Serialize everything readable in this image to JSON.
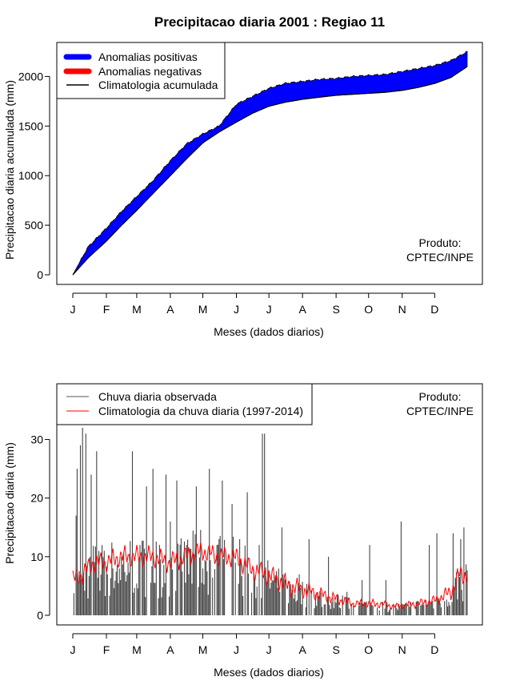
{
  "title": "Precipitacao diaria 2001 : Regiao 11",
  "credit": {
    "line1": "Produto:",
    "line2": "CPTEC/INPE"
  },
  "month_ticks": [
    "J",
    "F",
    "M",
    "A",
    "M",
    "J",
    "J",
    "A",
    "S",
    "O",
    "N",
    "D"
  ],
  "chart_data": [
    {
      "type": "area",
      "name": "cumulative",
      "xlabel": "Meses (dados diarios)",
      "ylabel": "Precipitacao diaria acumulada (mm)",
      "xlim": [
        1,
        365
      ],
      "ylim": [
        0,
        2270
      ],
      "yticks": [
        0,
        500,
        1000,
        1500,
        2000
      ],
      "legend": {
        "position": "top-left",
        "entries": [
          "Anomalias positivas",
          "Anomalias negativas",
          "Climatologia acumulada"
        ],
        "colors": [
          "#0000ff",
          "#ff0000",
          "#000000"
        ]
      },
      "x": [
        1,
        15,
        32,
        46,
        60,
        75,
        91,
        106,
        121,
        136,
        152,
        167,
        182,
        197,
        213,
        228,
        244,
        259,
        274,
        289,
        305,
        320,
        335,
        350,
        365
      ],
      "observed": [
        0,
        280,
        470,
        640,
        790,
        950,
        1150,
        1320,
        1420,
        1500,
        1720,
        1800,
        1880,
        1930,
        1950,
        1970,
        1980,
        2000,
        2010,
        2020,
        2050,
        2080,
        2110,
        2160,
        2250
      ],
      "climatology": [
        0,
        170,
        340,
        500,
        650,
        820,
        1000,
        1170,
        1330,
        1440,
        1540,
        1630,
        1700,
        1740,
        1770,
        1790,
        1810,
        1820,
        1830,
        1840,
        1860,
        1890,
        1930,
        1990,
        2100
      ]
    },
    {
      "type": "bar+line",
      "name": "daily",
      "xlabel": "Meses (dados diarios)",
      "ylabel": "Precipitacao diaria (mm)",
      "xlim": [
        1,
        365
      ],
      "ylim": [
        0,
        38
      ],
      "yticks": [
        0,
        10,
        20,
        30
      ],
      "legend": {
        "position": "top-left",
        "entries": [
          "Chuva diaria observada",
          "Climatologia da chuva diaria (1997-2014)"
        ],
        "colors": [
          "#555555",
          "#ff0000"
        ]
      },
      "observed_peaks": [
        [
          4,
          17
        ],
        [
          5,
          25
        ],
        [
          8,
          29
        ],
        [
          10,
          32
        ],
        [
          13,
          31
        ],
        [
          18,
          24
        ],
        [
          23,
          28
        ],
        [
          30,
          11
        ],
        [
          38,
          8
        ],
        [
          45,
          6
        ],
        [
          52,
          9
        ],
        [
          56,
          28
        ],
        [
          63,
          12
        ],
        [
          69,
          22
        ],
        [
          75,
          25
        ],
        [
          81,
          12
        ],
        [
          87,
          24
        ],
        [
          91,
          16
        ],
        [
          97,
          23
        ],
        [
          106,
          12
        ],
        [
          115,
          22
        ],
        [
          121,
          8
        ],
        [
          127,
          25
        ],
        [
          134,
          12
        ],
        [
          139,
          23
        ],
        [
          148,
          19
        ],
        [
          151,
          9
        ],
        [
          162,
          21
        ],
        [
          173,
          12
        ],
        [
          176,
          31
        ],
        [
          178,
          31
        ],
        [
          185,
          6
        ],
        [
          194,
          15
        ],
        [
          210,
          7
        ],
        [
          219,
          13
        ],
        [
          237,
          10
        ],
        [
          254,
          4
        ],
        [
          268,
          6
        ],
        [
          275,
          12
        ],
        [
          290,
          6
        ],
        [
          304,
          16
        ],
        [
          330,
          12
        ],
        [
          337,
          14
        ],
        [
          352,
          14
        ],
        [
          359,
          13
        ],
        [
          362,
          15
        ]
      ],
      "climatology": [
        [
          1,
          6
        ],
        [
          10,
          7
        ],
        [
          20,
          9
        ],
        [
          31,
          9
        ],
        [
          45,
          10
        ],
        [
          60,
          10
        ],
        [
          75,
          10
        ],
        [
          90,
          9
        ],
        [
          105,
          10
        ],
        [
          121,
          11
        ],
        [
          135,
          10
        ],
        [
          150,
          10
        ],
        [
          165,
          8
        ],
        [
          180,
          7
        ],
        [
          200,
          5
        ],
        [
          220,
          4
        ],
        [
          240,
          3
        ],
        [
          260,
          2
        ],
        [
          280,
          2
        ],
        [
          300,
          1.5
        ],
        [
          320,
          2
        ],
        [
          335,
          2.5
        ],
        [
          350,
          4
        ],
        [
          358,
          7
        ],
        [
          365,
          7
        ]
      ]
    }
  ]
}
